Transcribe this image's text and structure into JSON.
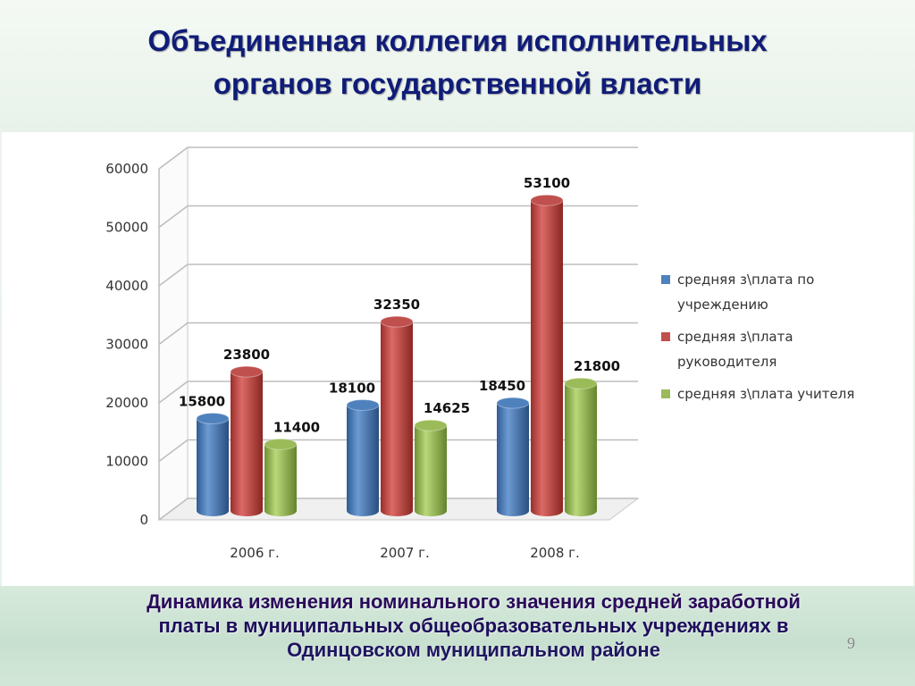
{
  "slide": {
    "title_line1": "Объединенная коллегия исполнительных",
    "title_line2": "органов государственной власти",
    "caption_line1": "Динамика изменения номинального значения средней заработной",
    "caption_line2": "платы в муниципальных общеобразовательных учреждениях в",
    "caption_line3": "Одинцовском муниципальном районе",
    "page_number": "9"
  },
  "colors": {
    "title": "#101c78",
    "caption": "#2d0b57"
  },
  "chart_data": {
    "type": "bar",
    "style": "3d-cylinder",
    "categories": [
      "2006 г.",
      "2007 г.",
      "2008 г."
    ],
    "series": [
      {
        "name": "средняя з\\плата по учреждению",
        "legend_lines": [
          "средняя з\\плата по",
          "учреждению"
        ],
        "color": "#4f81bd",
        "values": [
          15800,
          18100,
          18450
        ]
      },
      {
        "name": "средняя з\\плата руководителя",
        "legend_lines": [
          "средняя з\\плата",
          "руководителя"
        ],
        "color": "#c0504d",
        "values": [
          23800,
          32350,
          53100
        ]
      },
      {
        "name": "средняя з\\плата учителя",
        "legend_lines": [
          "средняя з\\плата учителя"
        ],
        "color": "#9bbb59",
        "values": [
          11400,
          14625,
          21800
        ]
      }
    ],
    "data_labels": [
      [
        "15800",
        "18100",
        "18450"
      ],
      [
        "23800",
        "32350",
        "53100"
      ],
      [
        "11400",
        "14625",
        "21800"
      ]
    ],
    "yticks": [
      "0",
      "10000",
      "20000",
      "30000",
      "40000",
      "50000",
      "60000"
    ],
    "ylim": [
      0,
      60000
    ],
    "grid": true,
    "legend": "right",
    "title": "",
    "xlabel": "",
    "ylabel": ""
  }
}
